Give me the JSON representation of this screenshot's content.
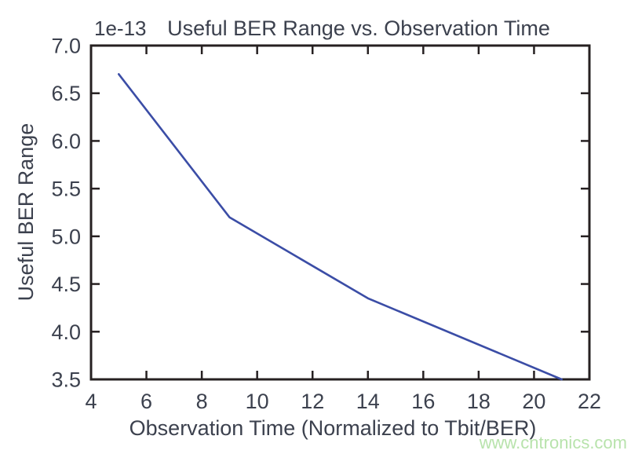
{
  "watermark": {
    "text": "www.cntronics.com",
    "color": "#b8e3ac"
  },
  "chart_data": {
    "type": "line",
    "title": "Useful BER Range vs. Observation Time",
    "xlabel": "Observation Time (Normalized to Tbit/BER)",
    "ylabel": "Useful BER Range",
    "y_offset_label": "1e-13",
    "x": [
      5,
      9,
      14,
      21
    ],
    "y": [
      6.7,
      5.2,
      4.35,
      3.5
    ],
    "xlim": [
      4,
      22
    ],
    "ylim": [
      3.5,
      7.0
    ],
    "xtick_labels": [
      "4",
      "6",
      "8",
      "10",
      "12",
      "14",
      "16",
      "18",
      "20",
      "22"
    ],
    "ytick_labels": [
      "3.5",
      "4.0",
      "4.5",
      "5.0",
      "5.5",
      "6.0",
      "6.5",
      "7.0"
    ],
    "grid": false,
    "legend": null,
    "line_color": "#3b4da6",
    "axis_color": "#262021",
    "text_color": "#3c414e"
  }
}
